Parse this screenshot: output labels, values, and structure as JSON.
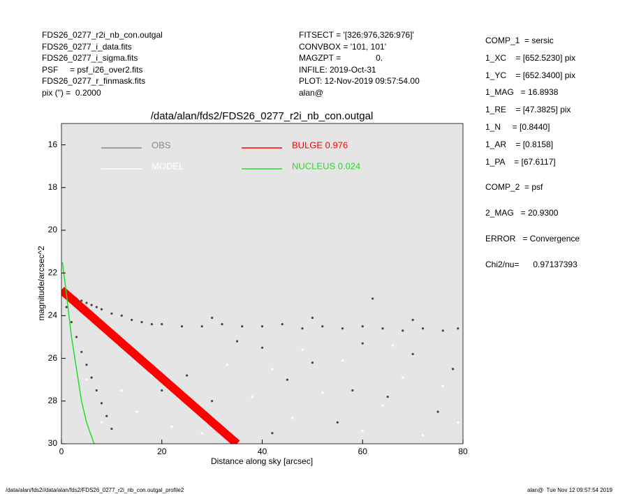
{
  "header": {
    "left": [
      "FDS26_0277_r2i_nb_con.outgal",
      "FDS26_0277_i_data.fits",
      "FDS26_0277_i_sigma.fits",
      "PSF     = psf_i26_over2.fits",
      "FDS26_0277_r_finmask.fits",
      "pix (\") =  0.2000"
    ],
    "middle": [
      "FITSECT = '[326:976,326:976]'",
      "CONVBOX = '101, 101'",
      "MAGZPT =               0.",
      "INFILE: 2019-Oct-31",
      "PLOT: 12-Nov-2019 09:57:54.00",
      "alan@"
    ],
    "right": [
      "COMP_1  = sersic",
      "1_XC    = [652.5230] pix",
      "1_YC    = [652.3400] pix",
      "1_MAG   = 16.8938",
      "1_RE    = [47.3825] pix",
      "1_N     = [0.8440]",
      "1_AR    = [0.8158]",
      "1_PA    = [67.6117]",
      "COMP_2  = psf",
      "2_MAG   = 20.9300",
      "ERROR   = Convergence",
      "Chi2/nu=      0.97137393"
    ]
  },
  "chart_data": {
    "type": "scatter",
    "title": "/data/alan/fds2/FDS26_0277_r2i_nb_con.outgal",
    "x_label": "Distance along sky [arcsec]",
    "y_label": "magnitude/arcsec^2",
    "xlim": [
      0,
      80
    ],
    "xticks": [
      0,
      20,
      40,
      60,
      80
    ],
    "ylim": [
      30,
      15
    ],
    "yticks": [
      16,
      18,
      20,
      22,
      24,
      26,
      28,
      30
    ],
    "background": "#e5e5e5",
    "series": [
      {
        "name": "OBS",
        "mode": "markers",
        "color": "#888888",
        "marker_color": "#444444",
        "x": [
          0.5,
          1,
          2,
          3,
          4,
          5,
          6,
          7,
          8,
          10,
          12,
          14,
          16,
          18,
          20,
          24,
          28,
          32,
          36,
          40,
          44,
          48,
          52,
          56,
          60,
          64,
          68,
          72,
          76,
          79,
          30,
          50,
          62,
          70,
          1,
          2,
          3,
          4,
          5,
          6,
          7,
          8,
          9,
          10,
          15,
          20,
          25,
          30,
          40,
          45,
          50,
          55,
          60,
          65,
          70,
          75,
          78,
          35,
          42,
          58
        ],
        "values": [
          22.9,
          23.0,
          23.1,
          23.2,
          23.3,
          23.4,
          23.5,
          23.6,
          23.7,
          23.9,
          24.0,
          24.2,
          24.3,
          24.4,
          24.4,
          24.5,
          24.5,
          24.4,
          24.5,
          24.5,
          24.4,
          24.6,
          24.5,
          24.6,
          24.5,
          24.6,
          24.7,
          24.6,
          24.7,
          24.6,
          24.1,
          24.1,
          23.2,
          24.2,
          23.6,
          24.3,
          25.0,
          25.7,
          26.3,
          26.9,
          27.5,
          28.1,
          28.7,
          29.3,
          26,
          27.5,
          26.8,
          28,
          25.5,
          27,
          26.2,
          29,
          25.3,
          27.8,
          25.8,
          28.5,
          26.5,
          25.2,
          29.5,
          27.5
        ]
      },
      {
        "name": "MODEL",
        "mode": "markers",
        "color": "#ffffff",
        "marker_color": "#ffffff",
        "x": [
          5,
          8,
          12,
          15,
          18,
          22,
          28,
          38,
          42,
          46,
          52,
          56,
          60,
          64,
          68,
          72,
          76,
          79,
          33,
          48,
          66
        ],
        "values": [
          27,
          29,
          27.5,
          28.5,
          26.8,
          29.2,
          29.5,
          27.8,
          26.5,
          28.8,
          27.6,
          26.1,
          29.4,
          28.2,
          26.9,
          29.6,
          27.3,
          29.0,
          26.3,
          25.6,
          25.4
        ]
      },
      {
        "name": "BULGE  0.976",
        "mode": "band",
        "color": "#ff0000",
        "x": [
          0,
          5,
          10,
          15,
          20,
          25,
          30,
          35
        ],
        "values": [
          22.8,
          23.83,
          24.86,
          25.89,
          26.92,
          27.95,
          28.98,
          30.0
        ]
      },
      {
        "name": "NUCLEUS  0.024",
        "mode": "line",
        "color": "#22dd22",
        "x": [
          0.2,
          1,
          2,
          3,
          4,
          5,
          6.5
        ],
        "values": [
          21.5,
          23,
          25,
          26.5,
          28,
          29,
          30
        ]
      }
    ]
  },
  "footer": {
    "left": "/data/alan/fds2//data/alan/fds2/FDS26_0277_r2i_nb_con.outgal_profile2",
    "right": "alan@  Tue Nov 12 09:57:54 2019"
  }
}
